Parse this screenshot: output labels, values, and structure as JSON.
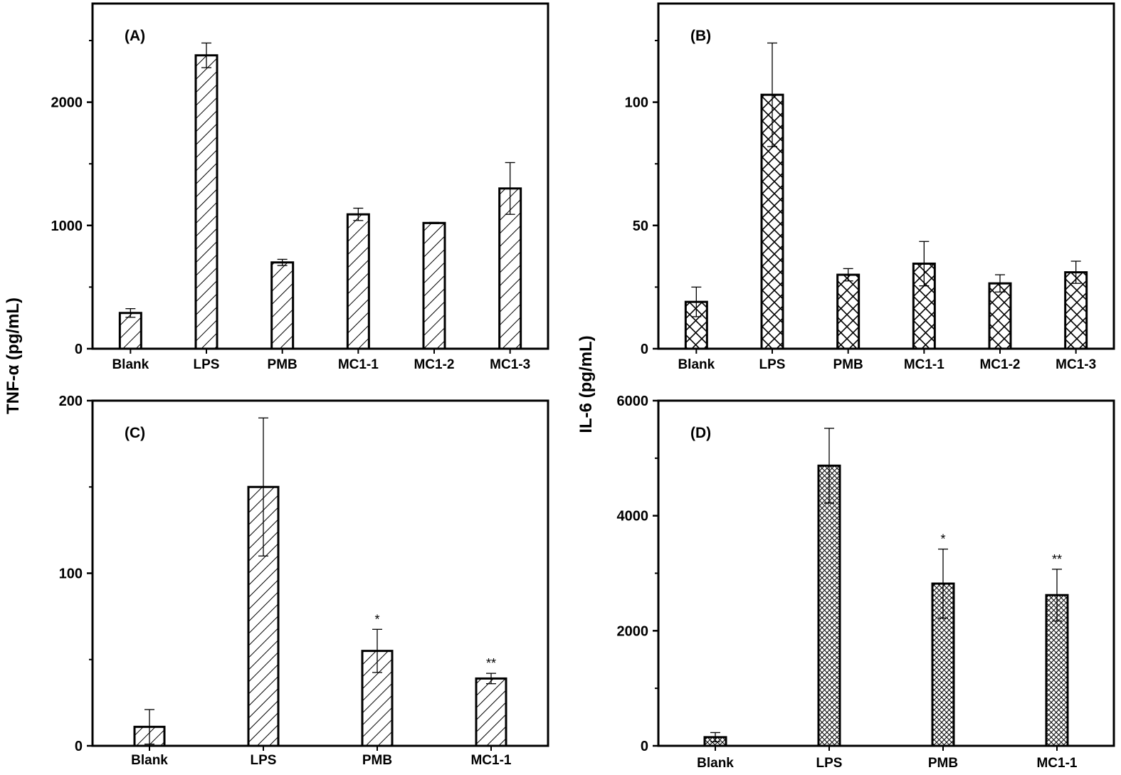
{
  "ylabels": {
    "left": "TNF-α (pg/mL)",
    "right": "IL-6 (pg/mL)"
  },
  "chart_data": [
    {
      "type": "bar",
      "panel": "(A)",
      "pattern": "diagonal-hatch",
      "ylabel": "TNF-α (pg/mL)",
      "ylim": [
        0,
        2800
      ],
      "yticks": [
        0,
        1000,
        2000
      ],
      "categories": [
        "Blank",
        "LPS",
        "PMB",
        "MC1-1",
        "MC1-2",
        "MC1-3"
      ],
      "values": [
        290,
        2380,
        700,
        1090,
        1020,
        1300
      ],
      "errors": [
        35,
        100,
        25,
        50,
        5,
        210
      ],
      "significance": [
        "",
        "",
        "",
        "",
        "",
        ""
      ]
    },
    {
      "type": "bar",
      "panel": "(B)",
      "pattern": "cross-hatch",
      "ylabel": "IL-6 (pg/mL)",
      "ylim": [
        0,
        140
      ],
      "yticks": [
        0,
        50,
        100
      ],
      "categories": [
        "Blank",
        "LPS",
        "PMB",
        "MC1-1",
        "MC1-2",
        "MC1-3"
      ],
      "values": [
        19,
        103,
        30,
        34.5,
        26.5,
        31
      ],
      "errors": [
        6,
        21,
        2.5,
        9,
        3.5,
        4.5
      ],
      "significance": [
        "",
        "",
        "",
        "",
        "",
        ""
      ]
    },
    {
      "type": "bar",
      "panel": "(C)",
      "pattern": "diagonal-hatch-dense",
      "ylabel": "TNF-α (pg/mL)",
      "ylim": [
        0,
        200
      ],
      "yticks": [
        0,
        100,
        200
      ],
      "categories": [
        "Blank",
        "LPS",
        "PMB",
        "MC1-1"
      ],
      "values": [
        11,
        150,
        55,
        39
      ],
      "errors": [
        10,
        40,
        12.5,
        3
      ],
      "significance": [
        "",
        "",
        "*",
        "**"
      ]
    },
    {
      "type": "bar",
      "panel": "(D)",
      "pattern": "fine-cross-hatch",
      "ylabel": "IL-6 (pg/mL)",
      "ylim": [
        0,
        6000
      ],
      "yticks": [
        0,
        2000,
        4000,
        6000
      ],
      "categories": [
        "Blank",
        "LPS",
        "PMB",
        "MC1-1"
      ],
      "values": [
        150,
        4870,
        2820,
        2620
      ],
      "errors": [
        80,
        650,
        600,
        450
      ],
      "significance": [
        "",
        "",
        "*",
        "**"
      ]
    }
  ]
}
